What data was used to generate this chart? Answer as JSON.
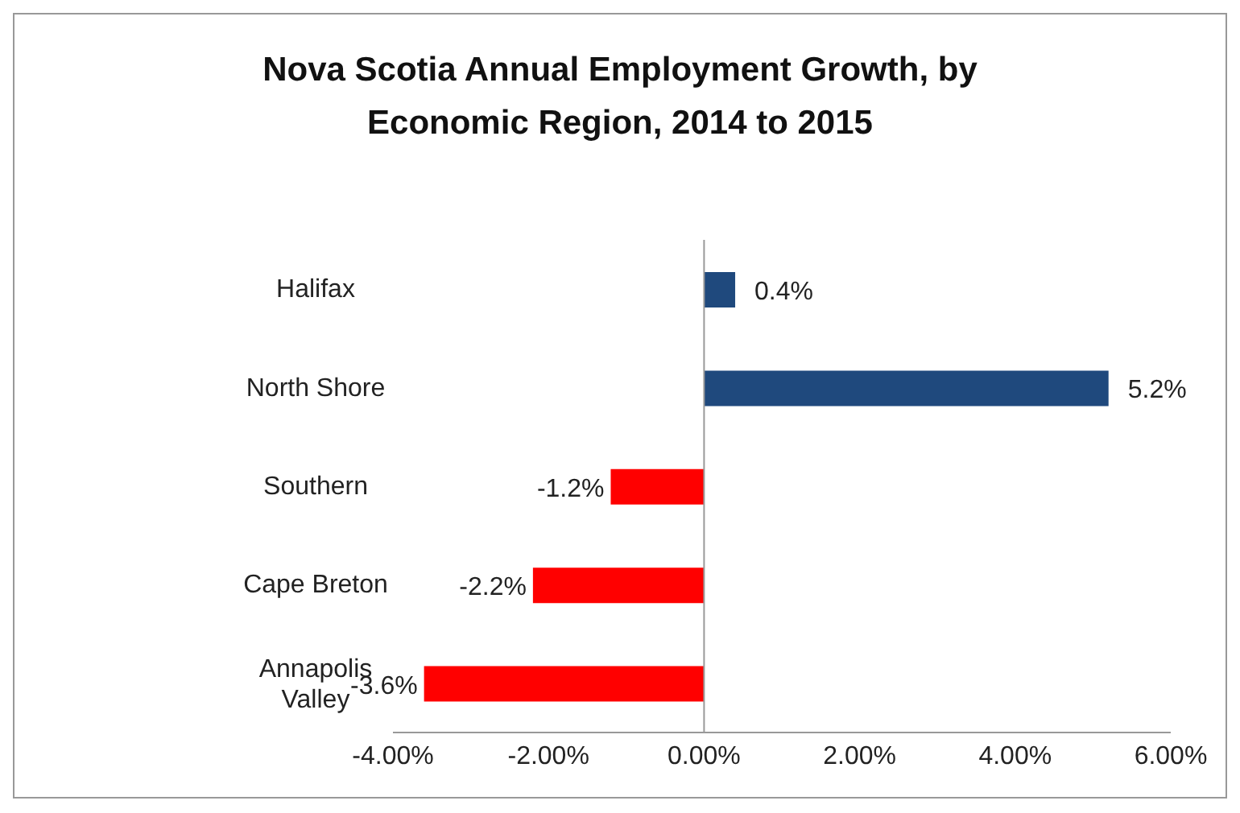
{
  "chart_data": {
    "type": "bar",
    "orientation": "horizontal",
    "title": "Nova Scotia Annual Employment Growth, by Economic Region, 2014 to 2015",
    "categories": [
      "Halifax",
      "North Shore",
      "Southern",
      "Cape Breton",
      "Annapolis Valley"
    ],
    "values": [
      0.4,
      5.2,
      -1.2,
      -2.2,
      -3.6
    ],
    "colors": [
      "#1f497d",
      "#1f497d",
      "#ff0000",
      "#ff0000",
      "#ff0000"
    ],
    "value_labels": [
      "0.4%",
      "5.2%",
      "-1.2%",
      "-2.2%",
      "-3.6%"
    ],
    "xlim": [
      -4,
      6
    ],
    "xticks": [
      {
        "value": -4,
        "label": "-4.00%"
      },
      {
        "value": -2,
        "label": "-2.00%"
      },
      {
        "value": 0,
        "label": "0.00%"
      },
      {
        "value": 2,
        "label": "2.00%"
      },
      {
        "value": 4,
        "label": "4.00%"
      },
      {
        "value": 6,
        "label": "6.00%"
      }
    ],
    "legend": false
  }
}
